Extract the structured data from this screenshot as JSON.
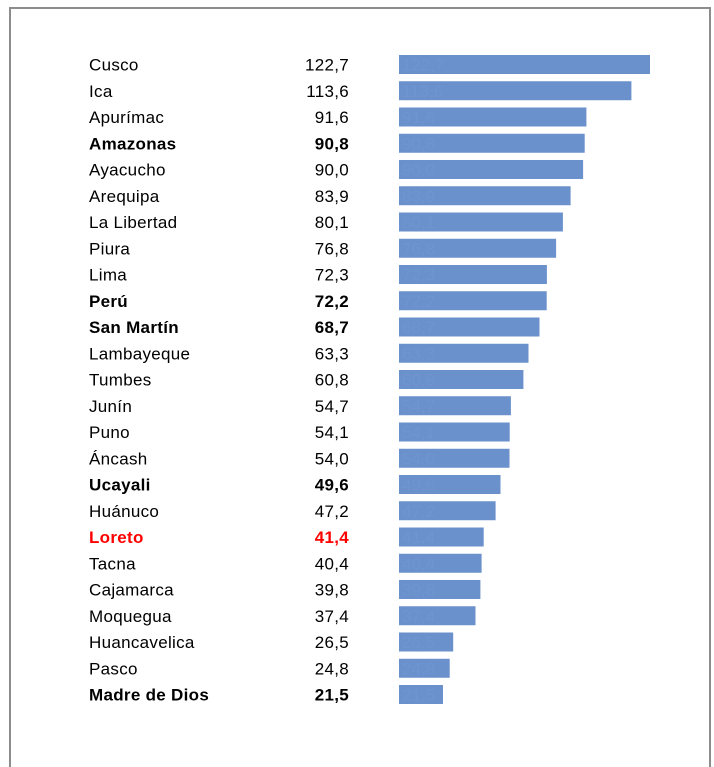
{
  "chart_data": {
    "type": "bar",
    "orientation": "horizontal",
    "title": "",
    "xlabel": "",
    "ylabel": "",
    "bar_color": "#6a91cc",
    "bar_label_color": "#6f95d1",
    "highlight_color": "#ff0000",
    "xlim": [
      0,
      122.7
    ],
    "grid": false,
    "legend": "none",
    "categories": [
      "Cusco",
      "Ica",
      "Apurímac",
      "Amazonas",
      "Ayacucho",
      "Arequipa",
      "La Libertad",
      "Piura",
      "Lima",
      "Perú",
      "San Martín",
      "Lambayeque",
      "Tumbes",
      "Junín",
      "Puno",
      "Áncash",
      "Ucayali",
      "Huánuco",
      "Loreto",
      "Tacna",
      "Cajamarca",
      "Moquegua",
      "Huancavelica",
      "Pasco",
      "Madre de Dios"
    ],
    "values": [
      122.7,
      113.6,
      91.6,
      90.8,
      90.0,
      83.9,
      80.1,
      76.8,
      72.3,
      72.2,
      68.7,
      63.3,
      60.8,
      54.7,
      54.1,
      54.0,
      49.6,
      47.2,
      41.4,
      40.4,
      39.8,
      37.4,
      26.5,
      24.8,
      21.5
    ],
    "value_labels": [
      "122,7",
      "113,6",
      "91,6",
      "90,8",
      "90,0",
      "83,9",
      "80,1",
      "76,8",
      "72,3",
      "72,2",
      "68,7",
      "63,3",
      "60,8",
      "54,7",
      "54,1",
      "54,0",
      "49,6",
      "47,2",
      "41,4",
      "40,4",
      "39,8",
      "37,4",
      "26,5",
      "24,8",
      "21,5"
    ],
    "styles": [
      "normal",
      "normal",
      "normal",
      "bold",
      "normal",
      "normal",
      "normal",
      "normal",
      "normal",
      "bold",
      "bold",
      "normal",
      "normal",
      "normal",
      "normal",
      "normal",
      "bold",
      "normal",
      "highlight",
      "normal",
      "normal",
      "normal",
      "normal",
      "normal",
      "bold"
    ]
  }
}
